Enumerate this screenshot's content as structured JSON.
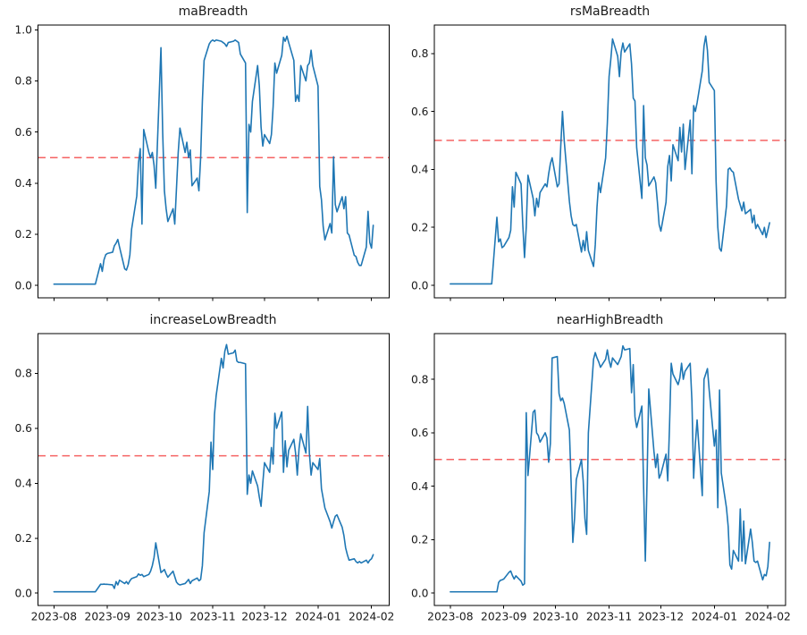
{
  "figure": {
    "background": "#ffffff",
    "series_color": "#1f77b4",
    "threshold_color": "#f56363",
    "spine_color": "#000000",
    "text_color": "#1a1a1a",
    "grid": false,
    "legend": null
  },
  "x_axis": {
    "start_date": "2023-08-01",
    "frequency": "trading-day",
    "xlim_days": [
      -9.25,
      194.25
    ],
    "tick_day_offsets": [
      0,
      31,
      61,
      92,
      122,
      153,
      184
    ],
    "tick_labels": [
      "2023-08",
      "2023-09",
      "2023-10",
      "2023-11",
      "2023-12",
      "2024-01",
      "2024-02"
    ]
  },
  "chart_data": [
    {
      "type": "line",
      "title": "maBreadth",
      "threshold": 0.5,
      "ylim": [
        -0.0485,
        1.0185
      ],
      "y_tick_values": [
        0.0,
        0.2,
        0.4,
        0.6,
        0.8,
        1.0
      ],
      "y_tick_labels": [
        "0.0",
        "0.2",
        "0.4",
        "0.6",
        "0.8",
        "1.0"
      ],
      "values": [
        0.005,
        0.005,
        0.005,
        0.005,
        0.005,
        0.005,
        0.005,
        0.005,
        0.005,
        0.005,
        0.005,
        0.005,
        0.005,
        0.005,
        0.005,
        0.005,
        0.005,
        0.005,
        0.005,
        0.085,
        0.055,
        0.1,
        0.12,
        0.125,
        0.13,
        0.155,
        0.165,
        0.18,
        0.15,
        0.065,
        0.06,
        0.08,
        0.12,
        0.22,
        0.35,
        0.48,
        0.535,
        0.24,
        0.61,
        0.52,
        0.5,
        0.52,
        0.47,
        0.38,
        0.93,
        0.6,
        0.37,
        0.3,
        0.25,
        0.3,
        0.24,
        0.38,
        0.52,
        0.615,
        0.52,
        0.56,
        0.5,
        0.53,
        0.39,
        0.42,
        0.37,
        0.5,
        0.72,
        0.88,
        0.945,
        0.955,
        0.96,
        0.955,
        0.96,
        0.955,
        0.95,
        0.945,
        0.935,
        0.95,
        0.955,
        0.96,
        0.955,
        0.95,
        0.905,
        0.87,
        0.285,
        0.63,
        0.6,
        0.72,
        0.86,
        0.78,
        0.62,
        0.545,
        0.59,
        0.555,
        0.59,
        0.7,
        0.87,
        0.83,
        0.9,
        0.97,
        0.955,
        0.975,
        0.95,
        0.88,
        0.72,
        0.745,
        0.72,
        0.86,
        0.8,
        0.86,
        0.87,
        0.92,
        0.86,
        0.78,
        0.387,
        0.335,
        0.23,
        0.178,
        0.242,
        0.205,
        0.503,
        0.317,
        0.288,
        0.347,
        0.3,
        0.347,
        0.205,
        0.197,
        0.118,
        0.113,
        0.09,
        0.078,
        0.078,
        0.15,
        0.29,
        0.168,
        0.146,
        0.235
      ]
    },
    {
      "type": "line",
      "title": "rsMaBreadth",
      "threshold": 0.5,
      "ylim": [
        -0.043,
        0.898
      ],
      "y_tick_values": [
        0.0,
        0.2,
        0.4,
        0.6,
        0.8
      ],
      "y_tick_labels": [
        "0.0",
        "0.2",
        "0.4",
        "0.6",
        "0.8"
      ],
      "values": [
        0.005,
        0.005,
        0.005,
        0.005,
        0.005,
        0.005,
        0.005,
        0.005,
        0.005,
        0.005,
        0.005,
        0.005,
        0.005,
        0.005,
        0.005,
        0.005,
        0.005,
        0.005,
        0.005,
        0.235,
        0.15,
        0.16,
        0.13,
        0.135,
        0.165,
        0.19,
        0.34,
        0.27,
        0.39,
        0.35,
        0.21,
        0.096,
        0.2,
        0.38,
        0.3,
        0.24,
        0.3,
        0.27,
        0.32,
        0.35,
        0.34,
        0.385,
        0.42,
        0.44,
        0.34,
        0.35,
        0.48,
        0.6,
        0.5,
        0.29,
        0.24,
        0.21,
        0.205,
        0.21,
        0.115,
        0.155,
        0.12,
        0.185,
        0.12,
        0.065,
        0.14,
        0.27,
        0.354,
        0.32,
        0.44,
        0.56,
        0.72,
        0.78,
        0.85,
        0.79,
        0.72,
        0.805,
        0.836,
        0.805,
        0.833,
        0.764,
        0.646,
        0.636,
        0.475,
        0.3,
        0.62,
        0.44,
        0.415,
        0.343,
        0.374,
        0.354,
        0.287,
        0.21,
        0.187,
        0.287,
        0.41,
        0.448,
        0.36,
        0.485,
        0.43,
        0.545,
        0.46,
        0.556,
        0.4,
        0.57,
        0.385,
        0.62,
        0.6,
        0.63,
        0.74,
        0.825,
        0.86,
        0.81,
        0.7,
        0.672,
        0.359,
        0.2,
        0.128,
        0.118,
        0.272,
        0.4,
        0.405,
        0.395,
        0.39,
        0.297,
        0.277,
        0.257,
        0.287,
        0.247,
        0.262,
        0.216,
        0.242,
        0.196,
        0.21,
        0.175,
        0.2,
        0.165,
        0.19,
        0.216
      ]
    },
    {
      "type": "line",
      "title": "increaseLowBreadth",
      "threshold": 0.5,
      "ylim": [
        -0.045,
        0.945
      ],
      "y_tick_values": [
        0.0,
        0.2,
        0.4,
        0.6,
        0.8
      ],
      "y_tick_labels": [
        "0.0",
        "0.2",
        "0.4",
        "0.6",
        "0.8"
      ],
      "values": [
        0.005,
        0.005,
        0.005,
        0.005,
        0.005,
        0.005,
        0.005,
        0.005,
        0.005,
        0.005,
        0.005,
        0.005,
        0.005,
        0.005,
        0.005,
        0.005,
        0.005,
        0.005,
        0.005,
        0.032,
        0.032,
        0.033,
        0.032,
        0.032,
        0.03,
        0.017,
        0.042,
        0.03,
        0.047,
        0.035,
        0.042,
        0.033,
        0.045,
        0.053,
        0.06,
        0.07,
        0.065,
        0.068,
        0.06,
        0.068,
        0.08,
        0.1,
        0.13,
        0.183,
        0.075,
        0.08,
        0.086,
        0.07,
        0.058,
        0.08,
        0.06,
        0.04,
        0.033,
        0.03,
        0.035,
        0.042,
        0.05,
        0.035,
        0.045,
        0.055,
        0.045,
        0.05,
        0.1,
        0.22,
        0.37,
        0.55,
        0.45,
        0.65,
        0.72,
        0.855,
        0.82,
        0.88,
        0.905,
        0.87,
        0.875,
        0.885,
        0.845,
        0.84,
        0.84,
        0.835,
        0.36,
        0.43,
        0.4,
        0.445,
        0.39,
        0.35,
        0.316,
        0.4,
        0.475,
        0.44,
        0.53,
        0.47,
        0.655,
        0.6,
        0.66,
        0.44,
        0.555,
        0.46,
        0.52,
        0.56,
        0.51,
        0.43,
        0.525,
        0.58,
        0.51,
        0.68,
        0.51,
        0.43,
        0.475,
        0.45,
        0.49,
        0.38,
        0.345,
        0.31,
        0.26,
        0.237,
        0.26,
        0.28,
        0.285,
        0.24,
        0.21,
        0.165,
        0.14,
        0.12,
        0.125,
        0.115,
        0.11,
        0.115,
        0.11,
        0.12,
        0.11,
        0.12,
        0.125,
        0.14
      ]
    },
    {
      "type": "line",
      "title": "nearHighBreadth",
      "threshold": 0.5,
      "ylim": [
        -0.046,
        0.971
      ],
      "y_tick_values": [
        0.0,
        0.2,
        0.4,
        0.6,
        0.8
      ],
      "y_tick_labels": [
        "0.0",
        "0.2",
        "0.4",
        "0.6",
        "0.8"
      ],
      "values": [
        0.005,
        0.005,
        0.005,
        0.005,
        0.005,
        0.005,
        0.005,
        0.005,
        0.005,
        0.005,
        0.005,
        0.005,
        0.005,
        0.005,
        0.005,
        0.005,
        0.005,
        0.005,
        0.005,
        0.005,
        0.04,
        0.048,
        0.05,
        0.053,
        0.078,
        0.083,
        0.066,
        0.053,
        0.065,
        0.045,
        0.03,
        0.035,
        0.675,
        0.44,
        0.677,
        0.685,
        0.6,
        0.59,
        0.565,
        0.6,
        0.58,
        0.49,
        0.56,
        0.88,
        0.885,
        0.747,
        0.72,
        0.73,
        0.71,
        0.61,
        0.415,
        0.19,
        0.28,
        0.425,
        0.5,
        0.42,
        0.28,
        0.22,
        0.6,
        0.875,
        0.9,
        0.88,
        0.865,
        0.845,
        0.875,
        0.91,
        0.87,
        0.845,
        0.88,
        0.855,
        0.87,
        0.885,
        0.925,
        0.91,
        0.915,
        0.75,
        0.855,
        0.66,
        0.62,
        0.7,
        0.4,
        0.12,
        0.42,
        0.764,
        0.53,
        0.47,
        0.52,
        0.43,
        0.445,
        0.52,
        0.42,
        0.62,
        0.86,
        0.82,
        0.78,
        0.805,
        0.86,
        0.8,
        0.83,
        0.86,
        0.72,
        0.43,
        0.56,
        0.648,
        0.365,
        0.8,
        0.82,
        0.84,
        0.76,
        0.55,
        0.61,
        0.32,
        0.76,
        0.45,
        0.32,
        0.25,
        0.106,
        0.09,
        0.16,
        0.12,
        0.315,
        0.12,
        0.27,
        0.11,
        0.24,
        0.19,
        0.12,
        0.115,
        0.12,
        0.05,
        0.07,
        0.065,
        0.1,
        0.19
      ]
    }
  ]
}
